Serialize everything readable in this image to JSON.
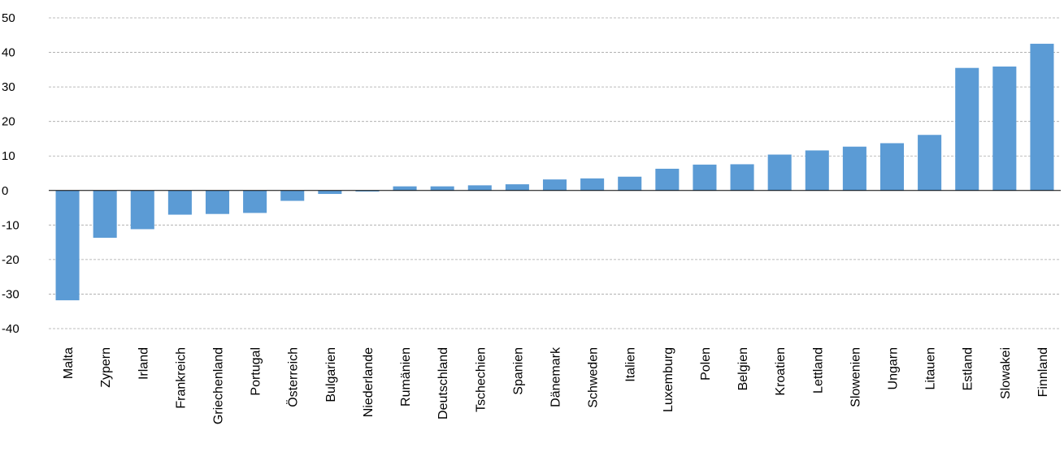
{
  "chart_data": {
    "type": "bar",
    "title": "",
    "xlabel": "",
    "ylabel": "",
    "ylim": [
      -40,
      50
    ],
    "yticks": [
      50,
      40,
      30,
      20,
      10,
      0,
      -10,
      -20,
      -30,
      -40
    ],
    "grid": true,
    "bar_color": "#5b9bd5",
    "categories": [
      "Malta",
      "Zypern",
      "Irland",
      "Frankreich",
      "Griechenland",
      "Portugal",
      "Österreich",
      "Bulgarien",
      "Niederlande",
      "Rumänien",
      "Deutschland",
      "Tschechien",
      "Spanien",
      "Dänemark",
      "Schweden",
      "Italien",
      "Luxemburg",
      "Polen",
      "Belgien",
      "Kroatien",
      "Lettland",
      "Slowenien",
      "Ungarn",
      "Litauen",
      "Estland",
      "Slowakei",
      "Finnland"
    ],
    "values": [
      -31.8,
      -13.7,
      -11.2,
      -7.0,
      -6.8,
      -6.5,
      -3.0,
      -1.0,
      -0.3,
      1.2,
      1.2,
      1.5,
      1.8,
      3.2,
      3.5,
      4.0,
      6.3,
      7.5,
      7.6,
      10.4,
      11.6,
      12.7,
      13.7,
      16.1,
      35.5,
      35.9,
      42.5
    ]
  }
}
